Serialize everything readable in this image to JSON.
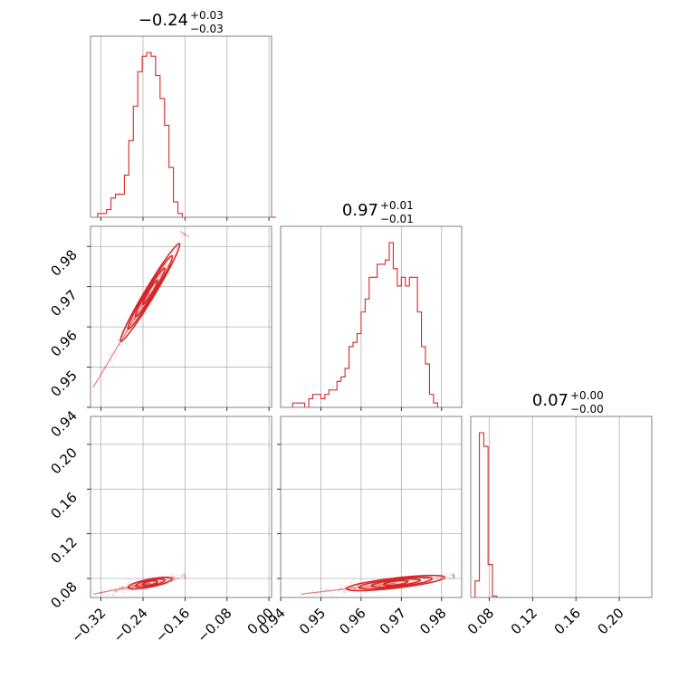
{
  "colors": {
    "series": "#d62728",
    "grid": "#b0b0b0",
    "frame": "#808080"
  },
  "chart_data": [
    {
      "type": "histogram",
      "panel": "marginal-1",
      "title": {
        "main": "−0.24",
        "upper": "+0.03",
        "lower": "−0.03"
      },
      "xlim": [
        -0.34,
        0.005
      ],
      "bins": {
        "start": -0.335,
        "width": 0.0085,
        "counts": [
          0,
          1,
          1,
          2,
          5,
          6,
          6,
          11,
          20,
          29,
          38,
          42,
          43,
          42,
          37,
          31,
          24,
          13,
          4,
          1,
          0,
          0,
          0,
          0,
          0,
          0,
          0,
          0,
          0,
          0,
          0,
          0,
          0,
          0,
          0,
          0,
          0,
          0,
          0,
          0,
          0
        ]
      },
      "xgrid": [
        -0.32,
        -0.24,
        -0.16,
        -0.08,
        0.0
      ]
    },
    {
      "type": "scatter",
      "panel": "joint-2-1",
      "xlim": [
        -0.34,
        0.005
      ],
      "ylim": [
        0.94,
        0.985
      ],
      "xgrid": [
        -0.32,
        -0.24,
        -0.16,
        -0.08,
        0.0
      ],
      "yticks": [
        "0.94",
        "0.95",
        "0.96",
        "0.97",
        "0.98"
      ],
      "yticks_values": [
        0.94,
        0.95,
        0.96,
        0.97,
        0.98
      ],
      "trend": {
        "x": [
          -0.335,
          -0.16
        ],
        "y": [
          0.945,
          0.983
        ]
      },
      "contour_levels": 4
    },
    {
      "type": "histogram",
      "panel": "marginal-2",
      "title": {
        "main": "0.97",
        "upper": "+0.01",
        "lower": "−0.01"
      },
      "xlim": [
        0.94,
        0.985
      ],
      "bins": {
        "start": 0.94,
        "width": 0.001,
        "counts": [
          0,
          0,
          0,
          1,
          1,
          1,
          0,
          2,
          3,
          3,
          2,
          3,
          4,
          4,
          6,
          7,
          9,
          14,
          15,
          17,
          22,
          25,
          30,
          30,
          33,
          33,
          34,
          38,
          32,
          28,
          30,
          28,
          30,
          30,
          22,
          14,
          10,
          3,
          1,
          0,
          0,
          0,
          0,
          0,
          0
        ]
      },
      "xgrid": [
        0.95,
        0.96,
        0.97,
        0.98
      ]
    },
    {
      "type": "scatter",
      "panel": "joint-3-1",
      "xlim": [
        -0.34,
        0.005
      ],
      "ylim": [
        0.063,
        0.225
      ],
      "xgrid": [
        -0.32,
        -0.24,
        -0.16,
        -0.08,
        0.0
      ],
      "xticks": [
        "−0.32",
        "−0.24",
        "−0.16",
        "−0.08",
        "0.00"
      ],
      "xticks_values": [
        -0.32,
        -0.24,
        -0.16,
        -0.08,
        0.0
      ],
      "yticks": [
        "0.08",
        "0.12",
        "0.16",
        "0.20"
      ],
      "yticks_values": [
        0.08,
        0.12,
        0.16,
        0.2
      ],
      "trend": {
        "x": [
          -0.335,
          -0.16
        ],
        "y": [
          0.066,
          0.082
        ]
      },
      "contour_levels": 3
    },
    {
      "type": "scatter",
      "panel": "joint-3-2",
      "xlim": [
        0.94,
        0.985
      ],
      "ylim": [
        0.063,
        0.225
      ],
      "xgrid": [
        0.94,
        0.95,
        0.96,
        0.97,
        0.98
      ],
      "xticks": [
        "0.94",
        "0.95",
        "0.96",
        "0.97",
        "0.98"
      ],
      "xticks_values": [
        0.94,
        0.95,
        0.96,
        0.97,
        0.98
      ],
      "ygrid": [
        0.08,
        0.12,
        0.16,
        0.2
      ],
      "trend": {
        "x": [
          0.945,
          0.983
        ],
        "y": [
          0.066,
          0.082
        ]
      },
      "contour_levels": 4
    },
    {
      "type": "histogram",
      "panel": "marginal-3",
      "title": {
        "main": "0.07",
        "upper": "+0.00",
        "lower": "−0.00"
      },
      "xlim": [
        0.063,
        0.23
      ],
      "bins": {
        "start": 0.063,
        "width": 0.004,
        "counts": [
          0,
          6,
          60,
          55,
          12,
          0.5,
          0,
          0,
          0,
          0,
          0,
          0,
          0,
          0,
          0,
          0,
          0,
          0,
          0,
          0,
          0,
          0,
          0,
          0,
          0,
          0,
          0,
          0,
          0,
          0,
          0,
          0,
          0,
          0,
          0,
          0,
          0,
          0,
          0,
          0,
          0
        ]
      },
      "xgrid": [
        0.08,
        0.12,
        0.16,
        0.2
      ],
      "xticks": [
        "0.08",
        "0.12",
        "0.16",
        "0.20"
      ],
      "xticks_values": [
        0.08,
        0.12,
        0.16,
        0.2
      ]
    }
  ]
}
